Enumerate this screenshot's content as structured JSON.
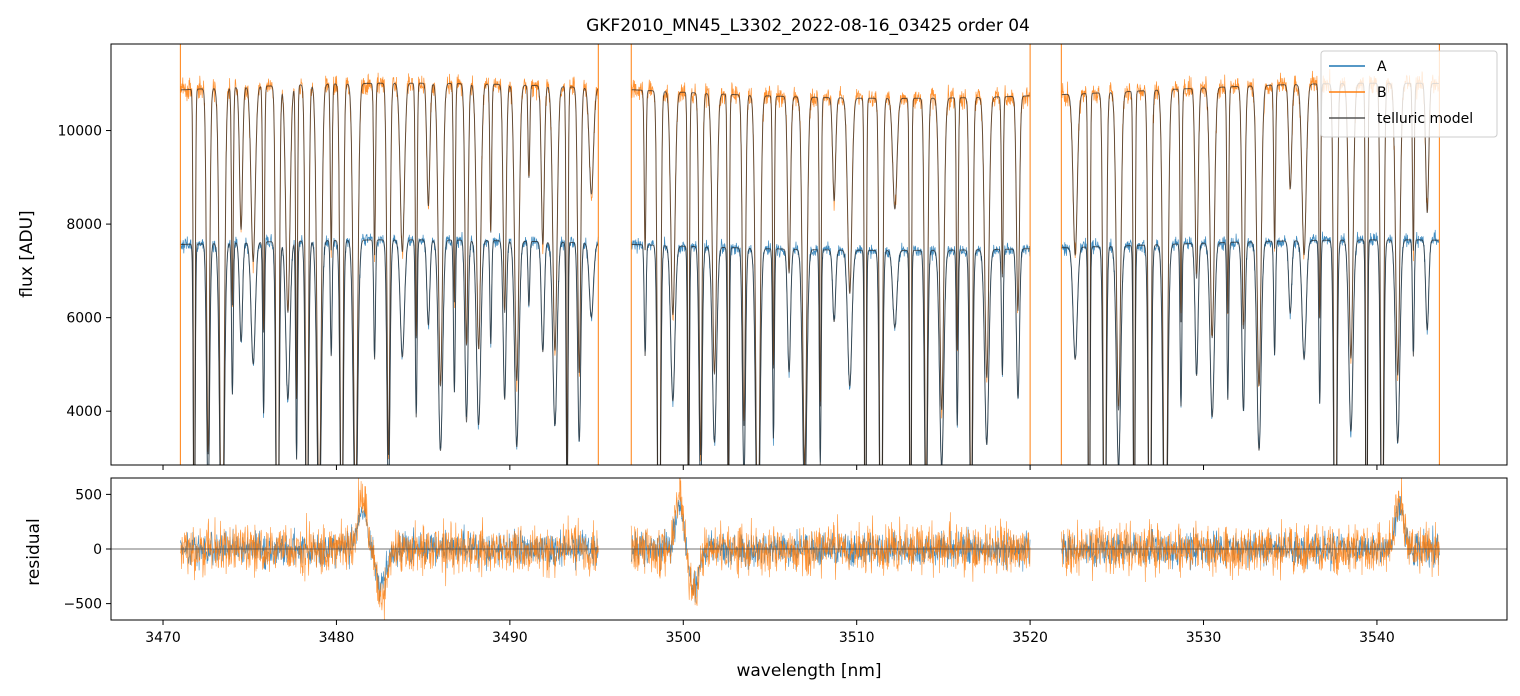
{
  "chart_data": [
    {
      "type": "line",
      "title": "GKF2010_MN45_L3302_2022-08-16_03425  order 04",
      "xlabel": "",
      "ylabel": "flux [ADU]",
      "xlim": [
        3467,
        3547.5
      ],
      "ylim": [
        2850,
        11850
      ],
      "yticks": [
        4000,
        6000,
        8000,
        10000
      ],
      "yticklabels": [
        "4000",
        "6000",
        "8000",
        "10000"
      ],
      "xticks": [
        3470,
        3480,
        3490,
        3500,
        3510,
        3520,
        3530,
        3540
      ],
      "legend": {
        "position": "top-right",
        "entries": [
          "A",
          "B",
          "telluric model"
        ]
      },
      "segments": [
        [
          3471,
          3495.1
        ],
        [
          3497,
          3520
        ],
        [
          3521.8,
          3543.6
        ]
      ],
      "series": [
        {
          "name": "A",
          "color": "#1f77b4",
          "continuum": 7550
        },
        {
          "name": "B",
          "color": "#ff7f0e",
          "continuum": 10850
        },
        {
          "name": "telluric model",
          "color": "#555555"
        }
      ],
      "absorption_lines_nm": [
        3471.8,
        3472.6,
        3473.4,
        3474.0,
        3474.5,
        3475.2,
        3475.8,
        3476.6,
        3477.2,
        3477.7,
        3478.3,
        3479.0,
        3479.7,
        3480.3,
        3481.1,
        3482.2,
        3483.0,
        3483.8,
        3484.6,
        3485.3,
        3486.0,
        3486.8,
        3487.5,
        3488.2,
        3488.9,
        3489.7,
        3490.4,
        3491.1,
        3491.9,
        3492.6,
        3493.3,
        3494.0,
        3494.7,
        3497.8,
        3498.6,
        3499.4,
        3500.3,
        3501.0,
        3501.8,
        3502.6,
        3503.5,
        3504.3,
        3505.2,
        3506.1,
        3507.0,
        3507.9,
        3508.7,
        3509.6,
        3510.5,
        3511.4,
        3512.2,
        3513.1,
        3514.0,
        3514.9,
        3515.8,
        3516.6,
        3517.5,
        3518.4,
        3519.3,
        3522.6,
        3523.4,
        3524.3,
        3525.1,
        3526.0,
        3526.9,
        3527.8,
        3528.7,
        3529.6,
        3530.5,
        3531.4,
        3532.3,
        3533.2,
        3534.1,
        3535.0,
        3535.8,
        3536.7,
        3537.6,
        3538.5,
        3539.4,
        3540.3,
        3541.2,
        3542.1,
        3542.9
      ]
    },
    {
      "type": "line",
      "title": "",
      "xlabel": "wavelength [nm]",
      "ylabel": "residual",
      "xlim": [
        3467,
        3547.5
      ],
      "ylim": [
        -650,
        650
      ],
      "yticks": [
        -500,
        0,
        500
      ],
      "yticklabels": [
        "−500",
        "0",
        "500"
      ],
      "xticks": [
        3470,
        3480,
        3490,
        3500,
        3510,
        3520,
        3530,
        3540
      ],
      "xticklabels": [
        "3470",
        "3480",
        "3490",
        "3500",
        "3510",
        "3520",
        "3530",
        "3540"
      ],
      "zero_line": 0,
      "noise_amplitude": 180,
      "series": [
        {
          "name": "A",
          "color": "#1f77b4"
        },
        {
          "name": "B",
          "color": "#ff7f0e"
        }
      ]
    }
  ]
}
